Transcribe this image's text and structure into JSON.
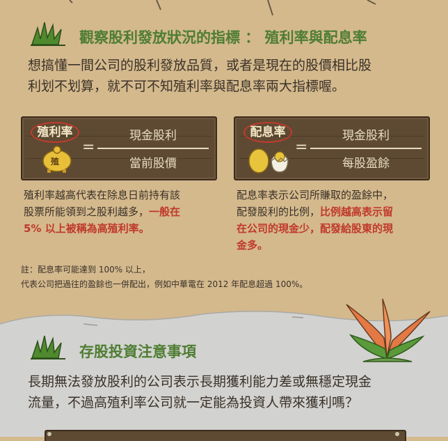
{
  "section1": {
    "title": "觀察股利發放狀況的指標 ： 殖利率與配息率",
    "intro_line1": "想搞懂一間公司的股利發放品質，或者是現在的股價相比股",
    "intro_line2": "利划不划算，就不可不知殖利率與配息率兩大指標喔。"
  },
  "yield_card": {
    "label": "殖利率",
    "icon_char": "殖",
    "equals": "=",
    "numerator": "現金股利",
    "denominator": "當前股價"
  },
  "payout_card": {
    "label": "配息率",
    "equals": "=",
    "numerator": "現金股利",
    "denominator": "每股盈餘"
  },
  "yield_desc": {
    "line1": "殖利率越高代表在除息日前持有該",
    "line2_plain": "股票所能領到之股利越多，",
    "line2_hl": "一般在",
    "line3_hl": "5% 以上被稱為高殖利率。"
  },
  "payout_desc": {
    "line1": "配息率表示公司所賺取的盈餘中，",
    "line2_plain": "配發股利的比例，",
    "line2_hl": "比例越高表示留",
    "line3_hl": "在公司的現金少，配發給股東的現",
    "line4_hl": "金多。"
  },
  "note": {
    "line1": "註：配息率可能達到 100% 以上，",
    "line2": "代表公司把過往的盈餘也一併配出，例如中華電在 2012 年配息超過 100%。"
  },
  "section2": {
    "title": "存股投資注意事項",
    "intro_line1": "長期無法發放股利的公司表示長期獲利能力差或無穩定現金",
    "intro_line2": "流量，不過高殖利率公司就一定能為投資人帶來獲利嗎？"
  },
  "colors": {
    "background": "#d4b98d",
    "heading_green": "#4e7d33",
    "highlight_red": "#c0392b",
    "board_brown": "#5e4a33",
    "grey_ground": "#d2d2d0"
  }
}
